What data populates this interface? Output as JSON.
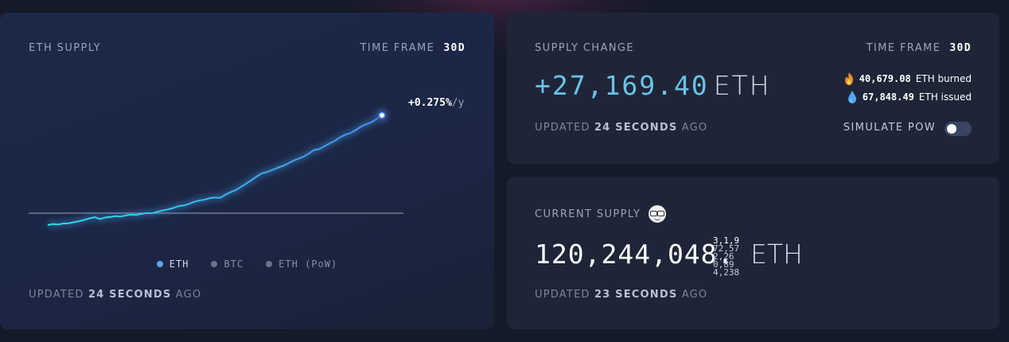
{
  "eth_supply_card": {
    "title": "ETH SUPPLY",
    "timeframe_label": "TIME FRAME",
    "timeframe_value": "30d",
    "growth_rate": "+0.275%",
    "growth_unit": "/y",
    "legend": [
      {
        "label": "ETH",
        "active": true,
        "color": "#5ba8f0"
      },
      {
        "label": "BTC",
        "active": false,
        "color": "#6b7389"
      },
      {
        "label": "ETH (PoW)",
        "active": false,
        "color": "#6b7389"
      }
    ],
    "updated_prefix": "UPDATED",
    "updated_value": "24 SECONDS",
    "updated_suffix": "AGO"
  },
  "chart_data": {
    "type": "line",
    "title": "",
    "xlabel": "",
    "ylabel": "",
    "grid": false,
    "series": [
      {
        "name": "ETH",
        "color": "#3fa9f5",
        "values": [
          0,
          0.4,
          0.2,
          0.6,
          0.7,
          1.1,
          1.5,
          2.0,
          2.6,
          3.0,
          2.3,
          2.9,
          3.1,
          3.4,
          3.3,
          3.7,
          4.0,
          3.9,
          4.3,
          4.6,
          4.5,
          5.1,
          5.6,
          6.0,
          6.5,
          7.2,
          7.5,
          8.1,
          8.9,
          9.4,
          9.7,
          10.3,
          10.6,
          10.4,
          11.6,
          12.6,
          13.4,
          14.6,
          15.9,
          17.2,
          18.6,
          19.8,
          20.3,
          21.1,
          21.9,
          22.6,
          23.6,
          24.6,
          25.4,
          26.2,
          27.4,
          28.7,
          29.1,
          30.2,
          31.3,
          32.3,
          33.6,
          34.6,
          35.2,
          36.4,
          37.7,
          38.6,
          39.4,
          40.6,
          42.0
        ]
      }
    ]
  },
  "supply_change_card": {
    "title": "SUPPLY CHANGE",
    "timeframe_label": "TIME FRAME",
    "timeframe_value": "30d",
    "change_value": "+27,169.40",
    "change_unit": "ETH",
    "burned_value": "40,679.08",
    "burned_label": "ETH burned",
    "issued_value": "67,848.49",
    "issued_label": "ETH issued",
    "updated_prefix": "UPDATED",
    "updated_value": "24 SECONDS",
    "updated_suffix": "AGO",
    "simulate_label": "SIMULATE PoW",
    "simulate_on": false
  },
  "current_supply_card": {
    "title": "CURRENT SUPPLY",
    "supply_integer": "120,244,048.",
    "supply_fraction_lines": [
      "3,1,9",
      "72,57",
      "2,26",
      "0,89",
      "4,238"
    ],
    "supply_unit": "ETH",
    "updated_prefix": "UPDATED",
    "updated_value": "23 SECONDS",
    "updated_suffix": "AGO"
  },
  "colors": {
    "accent_line": "#3fa9f5",
    "change_value": "#6bc3e8",
    "card_bg": "#1f2537",
    "page_bg": "#141a27"
  }
}
